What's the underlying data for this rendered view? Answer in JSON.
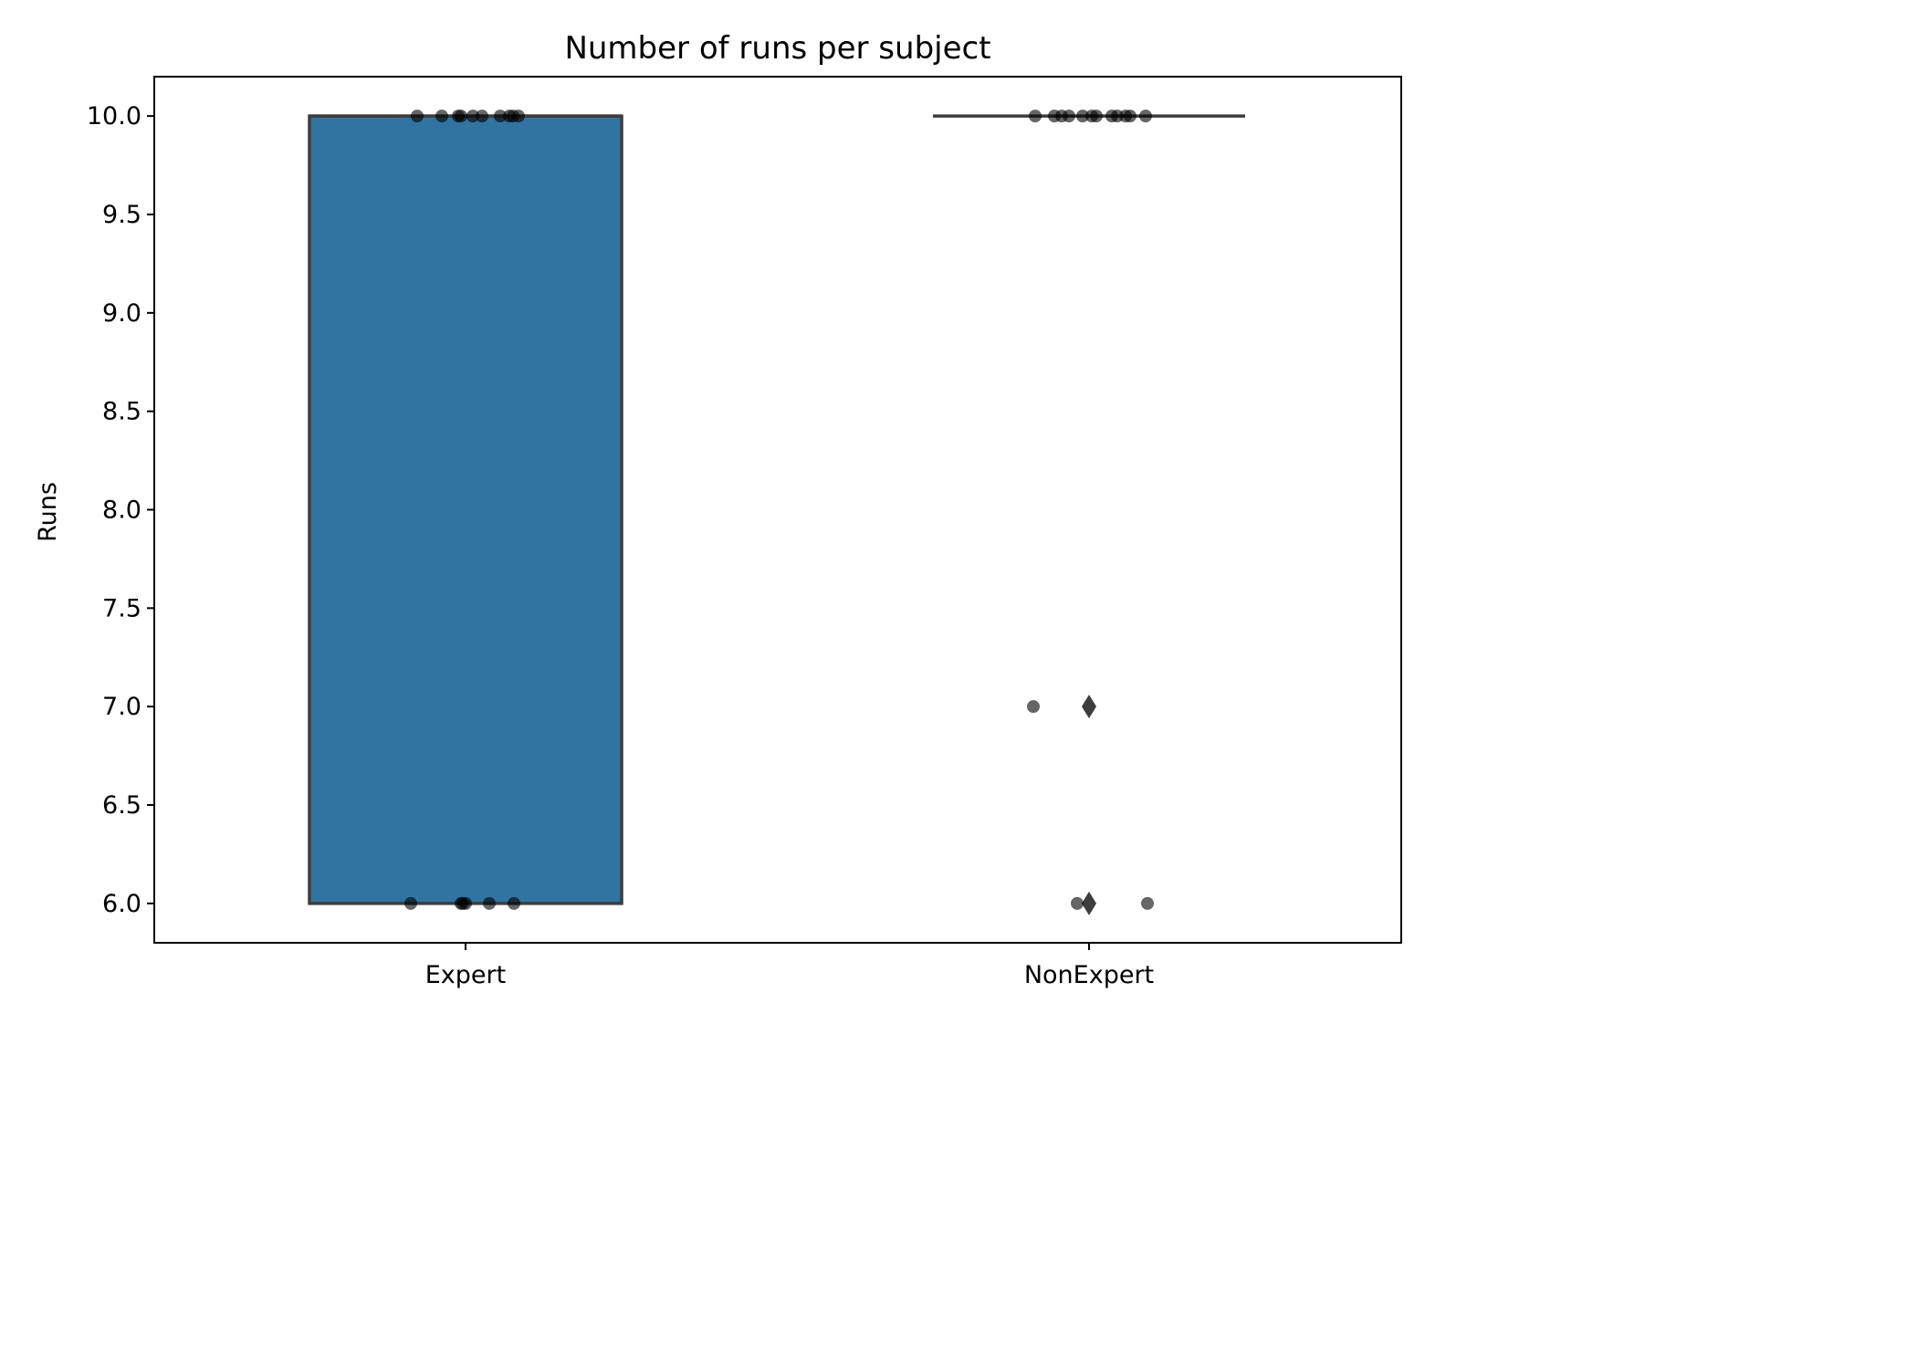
{
  "chart_data": {
    "type": "box",
    "title": "Number of runs per subject",
    "xlabel": "",
    "ylabel": "Runs",
    "ylim": [
      5.8,
      10.2
    ],
    "yticks": [
      "6.0",
      "6.5",
      "7.0",
      "7.5",
      "8.0",
      "8.5",
      "9.0",
      "9.5",
      "10.0"
    ],
    "categories": [
      "Expert",
      "NonExpert"
    ],
    "grid": false,
    "colors": {
      "box_fill": "#3274a1",
      "box_edge": "#3d3d3d",
      "point": "#000000",
      "axis": "#000000"
    },
    "boxes": [
      {
        "category": "Expert",
        "q1": 6.0,
        "median": 10.0,
        "q3": 10.0,
        "whisker_low": 6.0,
        "whisker_high": 10.0,
        "fliers": []
      },
      {
        "category": "NonExpert",
        "q1": 10.0,
        "median": 10.0,
        "q3": 10.0,
        "whisker_low": 10.0,
        "whisker_high": 10.0,
        "fliers": [
          7.0,
          6.0
        ]
      }
    ],
    "points": [
      {
        "category": "Expert",
        "values": [
          10.0,
          10.0,
          10.0,
          10.0,
          10.0,
          10.0,
          10.0,
          10.0,
          10.0,
          10.0,
          6.0,
          6.0,
          6.0,
          6.0,
          6.0,
          6.0
        ]
      },
      {
        "category": "NonExpert",
        "values": [
          10.0,
          10.0,
          10.0,
          10.0,
          10.0,
          10.0,
          10.0,
          10.0,
          10.0,
          10.0,
          10.0,
          10.0,
          7.0,
          6.0,
          6.0
        ]
      }
    ]
  }
}
